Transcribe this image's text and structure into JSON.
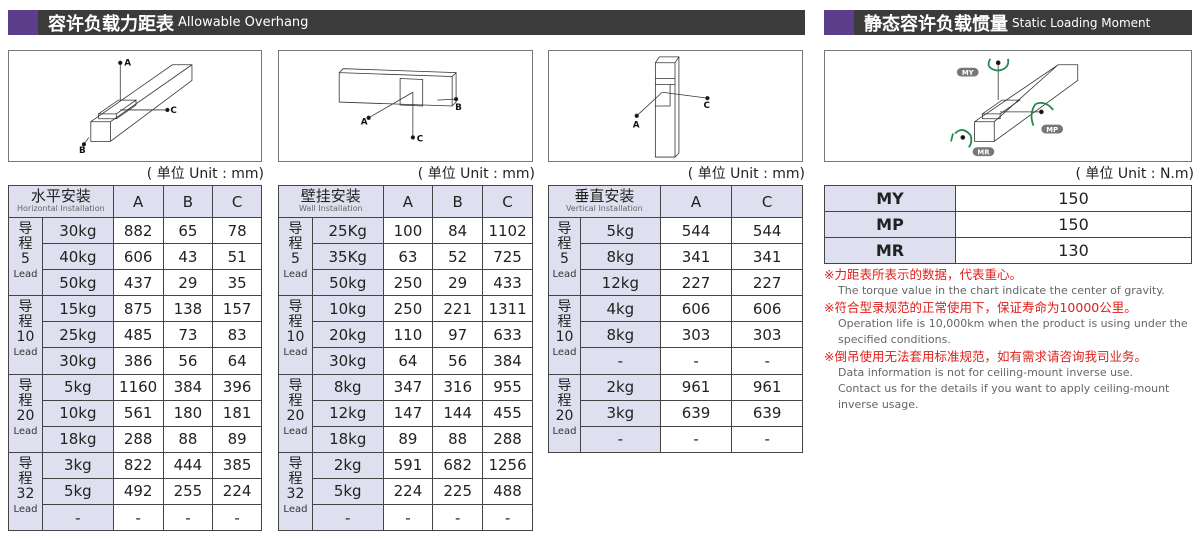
{
  "header_left": {
    "zh": "容许负载力距表",
    "en": "Allowable Overhang"
  },
  "header_right": {
    "zh": "静态容许负载惯量",
    "en": "Static Loading Moment"
  },
  "diagram_labels": {
    "a": "A",
    "b": "B",
    "c": "C",
    "my": "MY",
    "mp": "MP",
    "mr": "MR"
  },
  "colors": {
    "header_bg": "#3c3b3b",
    "header_accent": "#5b3f8c",
    "table_header": "#dfe0ef",
    "moment_arrow": "#1f8a4c",
    "note_red": "#e0201a"
  },
  "unit_mm": "( 单位 Unit : mm)",
  "unit_nm": "( 单位 Unit : N.m)",
  "lead_zh": "导程",
  "lead_en": "Lead",
  "tables": [
    {
      "zh": "水平安装",
      "en": "Horizontal Installation",
      "cols": [
        "A",
        "B",
        "C"
      ],
      "groups": [
        {
          "lead": "5",
          "rows": [
            [
              "30kg",
              "882",
              "65",
              "78"
            ],
            [
              "40kg",
              "606",
              "43",
              "51"
            ],
            [
              "50kg",
              "437",
              "29",
              "35"
            ]
          ]
        },
        {
          "lead": "10",
          "rows": [
            [
              "15kg",
              "875",
              "138",
              "157"
            ],
            [
              "25kg",
              "485",
              "73",
              "83"
            ],
            [
              "30kg",
              "386",
              "56",
              "64"
            ]
          ]
        },
        {
          "lead": "20",
          "rows": [
            [
              "5kg",
              "1160",
              "384",
              "396"
            ],
            [
              "10kg",
              "561",
              "180",
              "181"
            ],
            [
              "18kg",
              "288",
              "88",
              "89"
            ]
          ]
        },
        {
          "lead": "32",
          "rows": [
            [
              "3kg",
              "822",
              "444",
              "385"
            ],
            [
              "5kg",
              "492",
              "255",
              "224"
            ],
            [
              "-",
              "-",
              "-",
              "-"
            ]
          ]
        }
      ]
    },
    {
      "zh": "壁挂安装",
      "en": "Wall Installation",
      "cols": [
        "A",
        "B",
        "C"
      ],
      "groups": [
        {
          "lead": "5",
          "rows": [
            [
              "25Kg",
              "100",
              "84",
              "1102"
            ],
            [
              "35Kg",
              "63",
              "52",
              "725"
            ],
            [
              "50kg",
              "250",
              "29",
              "433"
            ]
          ]
        },
        {
          "lead": "10",
          "rows": [
            [
              "10kg",
              "250",
              "221",
              "1311"
            ],
            [
              "20kg",
              "110",
              "97",
              "633"
            ],
            [
              "30kg",
              "64",
              "56",
              "384"
            ]
          ]
        },
        {
          "lead": "20",
          "rows": [
            [
              "8kg",
              "347",
              "316",
              "955"
            ],
            [
              "12kg",
              "147",
              "144",
              "455"
            ],
            [
              "18kg",
              "89",
              "88",
              "288"
            ]
          ]
        },
        {
          "lead": "32",
          "rows": [
            [
              "2kg",
              "591",
              "682",
              "1256"
            ],
            [
              "5kg",
              "224",
              "225",
              "488"
            ],
            [
              "-",
              "-",
              "-",
              "-"
            ]
          ]
        }
      ]
    },
    {
      "zh": "垂直安装",
      "en": "Vertical Installation",
      "cols": [
        "A",
        "C"
      ],
      "groups": [
        {
          "lead": "5",
          "rows": [
            [
              "5kg",
              "544",
              "544"
            ],
            [
              "8kg",
              "341",
              "341"
            ],
            [
              "12kg",
              "227",
              "227"
            ]
          ]
        },
        {
          "lead": "10",
          "rows": [
            [
              "4kg",
              "606",
              "606"
            ],
            [
              "8kg",
              "303",
              "303"
            ],
            [
              "-",
              "-",
              "-"
            ]
          ]
        },
        {
          "lead": "20",
          "rows": [
            [
              "2kg",
              "961",
              "961"
            ],
            [
              "3kg",
              "639",
              "639"
            ],
            [
              "-",
              "-",
              "-"
            ]
          ]
        }
      ]
    }
  ],
  "moments": [
    [
      "MY",
      "150"
    ],
    [
      "MP",
      "150"
    ],
    [
      "MR",
      "130"
    ]
  ],
  "notes": [
    {
      "zh": "※力距表所表示的数据，代表重心。",
      "en": [
        "The torque value in the chart indicate the center of gravity."
      ]
    },
    {
      "zh": "※符合型录规范的正常使用下，保证寿命为10000公里。",
      "en": [
        "Operation life is 10,000km when the product is using under the",
        "specified conditions."
      ]
    },
    {
      "zh": "※倒吊使用无法套用标准规范，如有需求请咨询我司业务。",
      "en": [
        "Data information is not for ceiling-mount inverse use.",
        "Contact us for the details if you want to apply ceiling-mount",
        "inverse usage."
      ]
    }
  ]
}
